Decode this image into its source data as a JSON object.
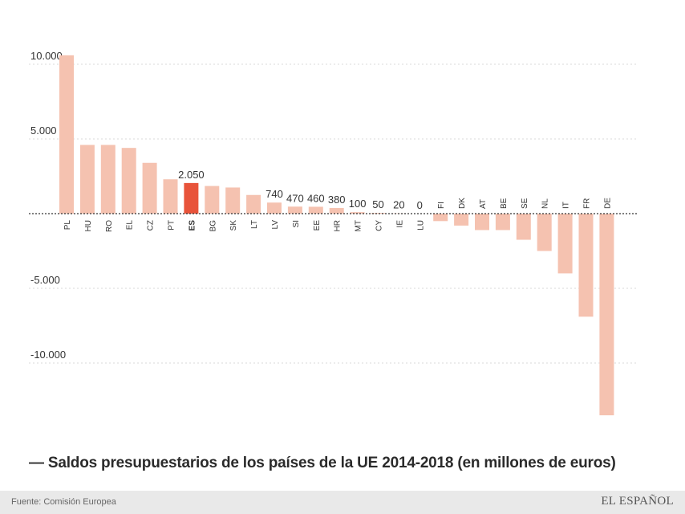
{
  "chart_data": {
    "type": "bar",
    "title": "— Saldos presupuestarios de los países de la UE 2014-2018 (en millones de euros)",
    "xlabel": "",
    "ylabel": "",
    "ylim": [
      -13500,
      10600
    ],
    "yticks": [
      10000,
      5000,
      -5000,
      -10000
    ],
    "ytick_labels": [
      "10.000",
      "5.000",
      "-5.000",
      "-10.000"
    ],
    "zero_line": "dotted",
    "grid": true,
    "highlight": "ES",
    "categories": [
      "PL",
      "HU",
      "RO",
      "EL",
      "CZ",
      "PT",
      "ES",
      "BG",
      "SK",
      "LT",
      "LV",
      "SI",
      "EE",
      "HR",
      "MT",
      "CY",
      "IE",
      "LU",
      "FI",
      "DK",
      "AT",
      "BE",
      "SE",
      "NL",
      "IT",
      "FR",
      "DE"
    ],
    "values": [
      10600,
      4600,
      4600,
      4400,
      3400,
      2300,
      2050,
      1850,
      1750,
      1250,
      740,
      470,
      460,
      380,
      100,
      50,
      20,
      0,
      -500,
      -800,
      -1100,
      -1100,
      -1750,
      -2500,
      -4000,
      -6900,
      -13500
    ],
    "value_labels": [
      "",
      "",
      "",
      "",
      "",
      "",
      "2.050",
      "",
      "",
      "",
      "740",
      "470",
      "460",
      "380",
      "100",
      "50",
      "20",
      "0",
      "",
      "",
      "",
      "",
      "",
      "",
      "",
      "",
      ""
    ]
  },
  "colors": {
    "bar": "#f5c2b0",
    "highlight": "#e8533a",
    "grid": "#d8d8d8",
    "axis": "#333333",
    "text": "#333333"
  },
  "footer": {
    "source": "Fuente: Comisión Europea",
    "brand": "EL ESPAÑOL"
  }
}
